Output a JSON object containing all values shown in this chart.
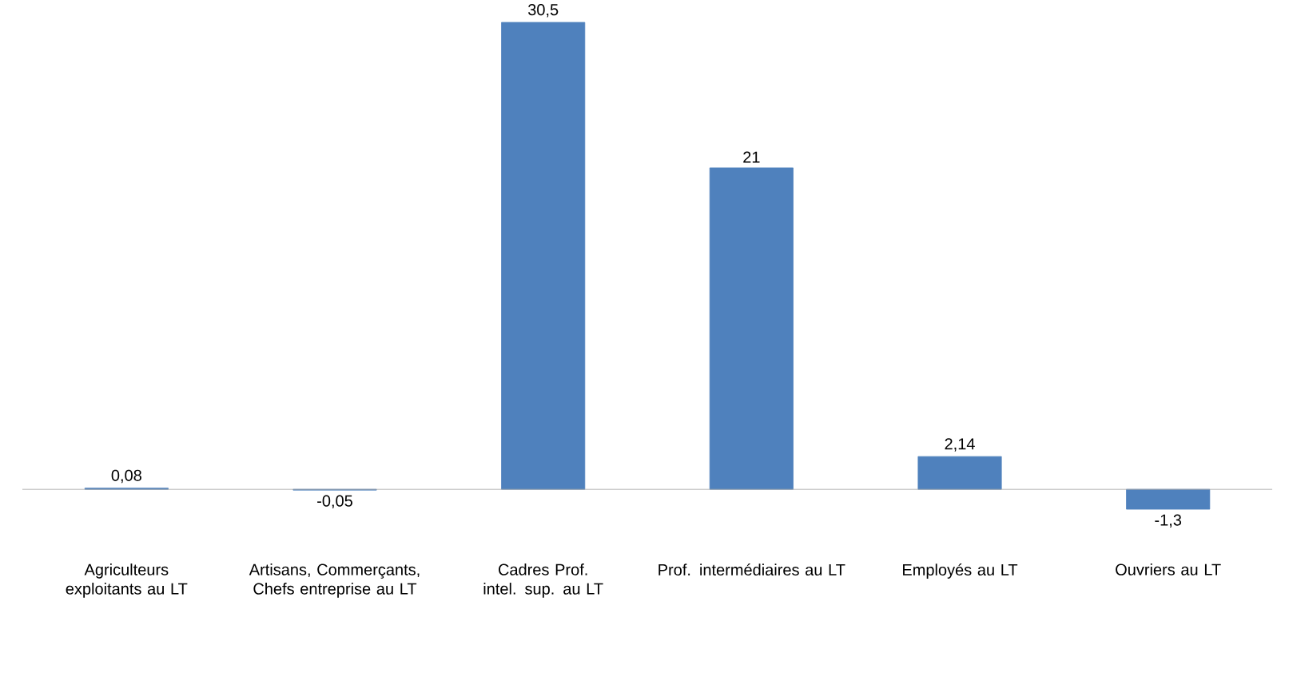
{
  "chart_data": {
    "type": "bar",
    "categories": [
      "Agriculteurs exploitants au LT",
      "Artisans, Commerçants, Chefs entreprise au LT",
      "Cadres Prof. intel. sup. au LT",
      "Prof. intermédiaires au LT",
      "Employés au LT",
      "Ouvriers au LT"
    ],
    "values": [
      0.08,
      -0.05,
      30.5,
      21,
      2.14,
      -1.3
    ],
    "value_labels": [
      "0,08",
      "-0,05",
      "30,5",
      "21",
      "2,14",
      "-1,3"
    ],
    "color": "#4f81bd"
  }
}
